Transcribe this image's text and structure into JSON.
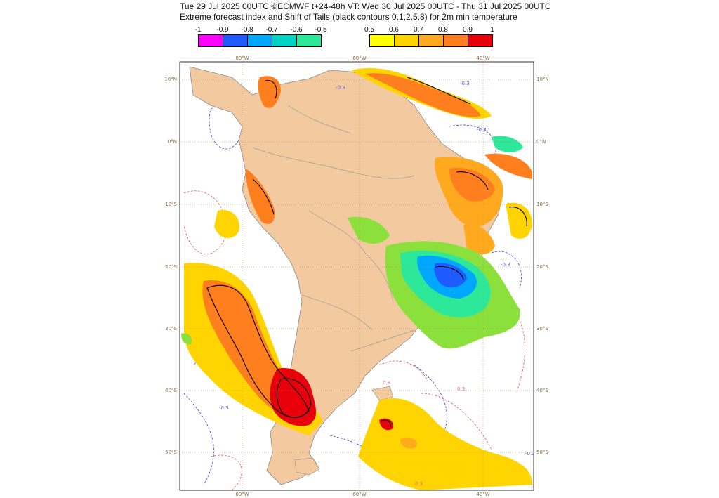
{
  "header": {
    "line1": "Tue 29 Jul 2025 00UTC ©ECMWF t+24-48h  VT: Wed 30 Jul 2025 00UTC - Thu 31 Jul 2025 00UTC",
    "line2": "Extreme forecast index and Shift of Tails (black contours 0,1,2,5,8) for 2m min temperature"
  },
  "legend_cold": {
    "ticks": [
      "-1",
      "-0.9",
      "-0.8",
      "-0.7",
      "-0.6",
      "-0.5"
    ],
    "colors": [
      "#ff00ff",
      "#1f5cff",
      "#00a7ff",
      "#00d2c8",
      "#2ee89a",
      "#8ce03c"
    ]
  },
  "legend_warm": {
    "ticks": [
      "0.5",
      "0.6",
      "0.7",
      "0.8",
      "0.9",
      "1"
    ],
    "colors": [
      "#ffff00",
      "#ffd400",
      "#ffaa1e",
      "#ff7f1e",
      "#ff4f0a",
      "#e8000a"
    ]
  },
  "axes": {
    "top": [
      "80°W",
      "60°W",
      "40°W"
    ],
    "bottom": [
      "80°W",
      "60°W",
      "40°W"
    ],
    "left": [
      "10°N",
      "0°N",
      "10°S",
      "20°S",
      "30°S",
      "40°S",
      "50°S"
    ],
    "right": [
      "10°N",
      "0°N",
      "10°S",
      "20°S",
      "30°S",
      "40°S",
      "50°S"
    ]
  },
  "contour_labels": [
    "-0.3",
    "-0.3",
    "-0.3",
    "0.3",
    "-0.3",
    "0.3",
    "-0.3",
    "0.3",
    "-0.3"
  ],
  "colors": {
    "land": "#f3c9a0",
    "sea": "#ffffff",
    "frame": "#333333"
  }
}
